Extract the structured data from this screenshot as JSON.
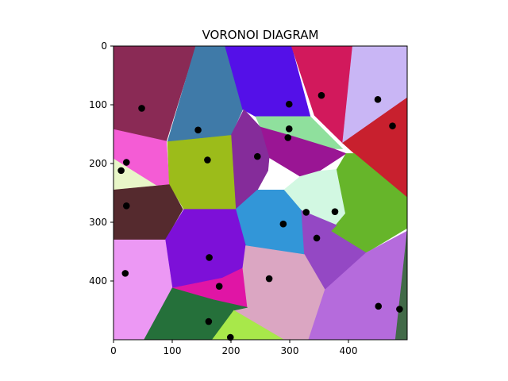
{
  "chart_data": {
    "type": "voronoi",
    "title": "VORONOI DIAGRAM",
    "xlim": [
      0,
      500
    ],
    "ylim": [
      500,
      0
    ],
    "x_ticks": [
      0,
      100,
      200,
      300,
      400
    ],
    "y_ticks": [
      0,
      100,
      200,
      300,
      400
    ],
    "grid": false,
    "cells": [
      {
        "color": "#8a2a55",
        "polygon": [
          [
            0,
            0
          ],
          [
            140,
            0
          ],
          [
            90,
            162
          ],
          [
            0,
            142
          ]
        ]
      },
      {
        "color": "#3f7aa8",
        "polygon": [
          [
            140,
            0
          ],
          [
            190,
            0
          ],
          [
            220,
            108
          ],
          [
            200,
            152
          ],
          [
            92,
            163
          ]
        ]
      },
      {
        "color": "#5410e8",
        "polygon": [
          [
            190,
            0
          ],
          [
            303,
            0
          ],
          [
            335,
            120
          ],
          [
            242,
            120
          ],
          [
            220,
            108
          ]
        ]
      },
      {
        "color": "#d2195c",
        "polygon": [
          [
            303,
            0
          ],
          [
            407,
            0
          ],
          [
            390,
            165
          ],
          [
            342,
            118
          ]
        ]
      },
      {
        "color": "#c9b6f5",
        "polygon": [
          [
            407,
            0
          ],
          [
            500,
            0
          ],
          [
            500,
            88
          ],
          [
            390,
            165
          ]
        ]
      },
      {
        "color": "#c8202e",
        "polygon": [
          [
            500,
            88
          ],
          [
            390,
            165
          ],
          [
            410,
            183
          ],
          [
            500,
            258
          ]
        ]
      },
      {
        "color": "#8fe09d",
        "polygon": [
          [
            242,
            120
          ],
          [
            335,
            120
          ],
          [
            390,
            175
          ],
          [
            375,
            175
          ],
          [
            300,
            152
          ],
          [
            250,
            138
          ]
        ]
      },
      {
        "color": "#9a1594",
        "polygon": [
          [
            250,
            138
          ],
          [
            300,
            152
          ],
          [
            375,
            175
          ],
          [
            396,
            183
          ],
          [
            350,
            213
          ],
          [
            318,
            222
          ],
          [
            265,
            190
          ]
        ]
      },
      {
        "color": "#852c9a",
        "polygon": [
          [
            200,
            152
          ],
          [
            222,
            108
          ],
          [
            250,
            138
          ],
          [
            265,
            190
          ],
          [
            263,
            212
          ],
          [
            245,
            245
          ],
          [
            208,
            278
          ]
        ]
      },
      {
        "color": "#f45cd5",
        "polygon": [
          [
            0,
            142
          ],
          [
            90,
            162
          ],
          [
            95,
            236
          ],
          [
            72,
            237
          ],
          [
            0,
            192
          ]
        ]
      },
      {
        "color": "#e8f6c8",
        "polygon": [
          [
            0,
            192
          ],
          [
            72,
            237
          ],
          [
            0,
            245
          ]
        ]
      },
      {
        "color": "#9cbc1a",
        "polygon": [
          [
            92,
            163
          ],
          [
            200,
            152
          ],
          [
            208,
            278
          ],
          [
            120,
            278
          ],
          [
            95,
            236
          ]
        ]
      },
      {
        "color": "#d2f8e2",
        "polygon": [
          [
            318,
            222
          ],
          [
            350,
            213
          ],
          [
            380,
            210
          ],
          [
            395,
            285
          ],
          [
            380,
            305
          ],
          [
            320,
            280
          ],
          [
            290,
            245
          ]
        ]
      },
      {
        "color": "#66b52a",
        "polygon": [
          [
            396,
            183
          ],
          [
            410,
            183
          ],
          [
            500,
            258
          ],
          [
            500,
            310
          ],
          [
            430,
            352
          ],
          [
            370,
            315
          ],
          [
            395,
            285
          ],
          [
            380,
            210
          ]
        ]
      },
      {
        "color": "#552a2e",
        "polygon": [
          [
            0,
            245
          ],
          [
            95,
            236
          ],
          [
            118,
            278
          ],
          [
            88,
            330
          ],
          [
            0,
            330
          ]
        ]
      },
      {
        "color": "#3296d8",
        "polygon": [
          [
            245,
            245
          ],
          [
            290,
            245
          ],
          [
            320,
            280
          ],
          [
            325,
            355
          ],
          [
            225,
            340
          ],
          [
            208,
            278
          ]
        ]
      },
      {
        "color": "#7d10d8",
        "polygon": [
          [
            120,
            278
          ],
          [
            208,
            278
          ],
          [
            225,
            340
          ],
          [
            220,
            378
          ],
          [
            185,
            395
          ],
          [
            100,
            412
          ],
          [
            88,
            330
          ]
        ]
      },
      {
        "color": "#9448c4",
        "polygon": [
          [
            320,
            280
          ],
          [
            380,
            305
          ],
          [
            370,
            315
          ],
          [
            430,
            352
          ],
          [
            360,
            415
          ],
          [
            325,
            355
          ]
        ]
      },
      {
        "color": "#ec98f4",
        "polygon": [
          [
            0,
            330
          ],
          [
            88,
            330
          ],
          [
            100,
            412
          ],
          [
            52,
            500
          ],
          [
            0,
            500
          ]
        ]
      },
      {
        "color": "#e015a5",
        "polygon": [
          [
            100,
            412
          ],
          [
            185,
            395
          ],
          [
            220,
            378
          ],
          [
            228,
            445
          ],
          [
            170,
            432
          ]
        ]
      },
      {
        "color": "#dba6c2",
        "polygon": [
          [
            225,
            340
          ],
          [
            325,
            355
          ],
          [
            360,
            415
          ],
          [
            332,
            500
          ],
          [
            290,
            500
          ],
          [
            205,
            450
          ],
          [
            228,
            445
          ],
          [
            220,
            378
          ]
        ]
      },
      {
        "color": "#b56bdc",
        "polygon": [
          [
            360,
            415
          ],
          [
            430,
            352
          ],
          [
            500,
            315
          ],
          [
            480,
            500
          ],
          [
            332,
            500
          ]
        ]
      },
      {
        "color": "#25703a",
        "polygon": [
          [
            52,
            500
          ],
          [
            100,
            412
          ],
          [
            170,
            432
          ],
          [
            228,
            445
          ],
          [
            205,
            450
          ],
          [
            168,
            500
          ]
        ]
      },
      {
        "color": "#a8e84a",
        "polygon": [
          [
            168,
            500
          ],
          [
            205,
            450
          ],
          [
            290,
            500
          ]
        ]
      },
      {
        "color": "#426a48",
        "polygon": [
          [
            500,
            315
          ],
          [
            500,
            500
          ],
          [
            480,
            500
          ]
        ]
      }
    ],
    "points": [
      {
        "x": 48,
        "y": 106
      },
      {
        "x": 144,
        "y": 143
      },
      {
        "x": 160,
        "y": 194
      },
      {
        "x": 22,
        "y": 198
      },
      {
        "x": 13,
        "y": 212
      },
      {
        "x": 22,
        "y": 272
      },
      {
        "x": 299,
        "y": 99
      },
      {
        "x": 354,
        "y": 84
      },
      {
        "x": 450,
        "y": 91
      },
      {
        "x": 475,
        "y": 136
      },
      {
        "x": 299,
        "y": 141
      },
      {
        "x": 297,
        "y": 156
      },
      {
        "x": 245,
        "y": 188
      },
      {
        "x": 328,
        "y": 283
      },
      {
        "x": 377,
        "y": 282
      },
      {
        "x": 289,
        "y": 303
      },
      {
        "x": 346,
        "y": 327
      },
      {
        "x": 163,
        "y": 360
      },
      {
        "x": 20,
        "y": 387
      },
      {
        "x": 265,
        "y": 396
      },
      {
        "x": 180,
        "y": 409
      },
      {
        "x": 451,
        "y": 443
      },
      {
        "x": 487,
        "y": 448
      },
      {
        "x": 162,
        "y": 469
      },
      {
        "x": 199,
        "y": 496
      }
    ]
  }
}
